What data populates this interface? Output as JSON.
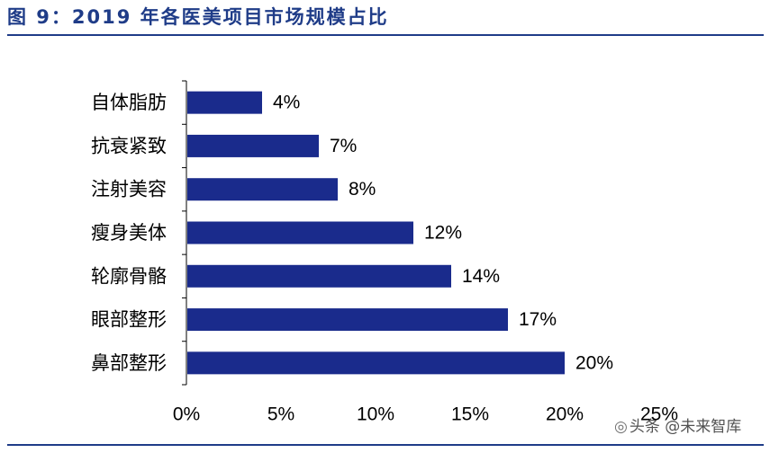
{
  "figure": {
    "title": "图 9：2019 年各医美项目市场规模占比"
  },
  "watermark": {
    "text": "头条 @未来智库"
  },
  "chart_data": {
    "type": "bar",
    "orientation": "horizontal",
    "categories": [
      "自体脂肪",
      "抗衰紧致",
      "注射美容",
      "瘦身美体",
      "轮廓骨骼",
      "眼部整形",
      "鼻部整形"
    ],
    "values": [
      4,
      7,
      8,
      12,
      14,
      17,
      20
    ],
    "data_labels": [
      "4%",
      "7%",
      "8%",
      "12%",
      "14%",
      "17%",
      "20%"
    ],
    "xlim": [
      0,
      25
    ],
    "x_ticks": [
      0,
      5,
      10,
      15,
      20,
      25
    ],
    "x_tick_labels": [
      "0%",
      "5%",
      "10%",
      "15%",
      "20%",
      "25%"
    ],
    "bar_color": "#1a2b8c",
    "grid": false,
    "legend": "none",
    "xlabel": "",
    "ylabel": ""
  }
}
